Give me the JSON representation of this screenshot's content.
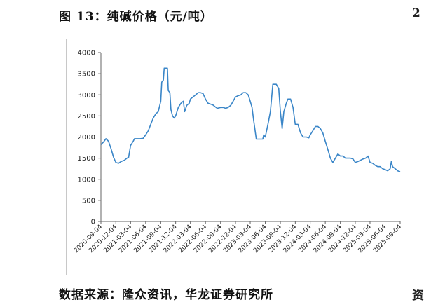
{
  "figure": {
    "title": "图 13：纯碱价格（元/吨）",
    "source": "数据来源：隆众资讯，华龙证券研究所",
    "edge_top_text": "2",
    "edge_bottom_text": "资"
  },
  "chart_data": {
    "type": "line",
    "title": "",
    "xlabel": "",
    "ylabel": "",
    "ylim": [
      0,
      4000
    ],
    "yticks": [
      "0",
      "500",
      "1000",
      "1500",
      "2000",
      "2500",
      "3000",
      "3500",
      "4000"
    ],
    "xticks": [
      "2020-09-04",
      "2020-12-04",
      "2021-03-04",
      "2021-06-04",
      "2021-09-04",
      "2021-12-04",
      "2022-03-04",
      "2022-06-04",
      "2022-09-04",
      "2022-12-04",
      "2023-03-04",
      "2023-06-04",
      "2023-09-04",
      "2023-12-04",
      "2024-03-04",
      "2024-06-04",
      "2024-09-04",
      "2024-12-04",
      "2025-03-04",
      "2025-06-04",
      "2025-09-04"
    ],
    "grid": false,
    "legend": "none",
    "series": [
      {
        "color": "#3a86c8",
        "points": [
          [
            "2020-09-04",
            1820
          ],
          [
            "2020-09-20",
            1880
          ],
          [
            "2020-10-05",
            1960
          ],
          [
            "2020-10-20",
            1900
          ],
          [
            "2020-11-05",
            1720
          ],
          [
            "2020-11-20",
            1520
          ],
          [
            "2020-12-04",
            1400
          ],
          [
            "2020-12-20",
            1380
          ],
          [
            "2021-01-05",
            1420
          ],
          [
            "2021-01-25",
            1450
          ],
          [
            "2021-02-10",
            1500
          ],
          [
            "2021-02-20",
            1520
          ],
          [
            "2021-03-04",
            1800
          ],
          [
            "2021-03-20",
            1900
          ],
          [
            "2021-03-28",
            1960
          ],
          [
            "2021-04-15",
            1960
          ],
          [
            "2021-05-01",
            1960
          ],
          [
            "2021-05-20",
            1970
          ],
          [
            "2021-06-04",
            2050
          ],
          [
            "2021-06-20",
            2150
          ],
          [
            "2021-07-05",
            2300
          ],
          [
            "2021-07-20",
            2450
          ],
          [
            "2021-08-05",
            2550
          ],
          [
            "2021-08-20",
            2600
          ],
          [
            "2021-09-04",
            2850
          ],
          [
            "2021-09-10",
            3300
          ],
          [
            "2021-09-20",
            3350
          ],
          [
            "2021-09-25",
            3630
          ],
          [
            "2021-10-15",
            3630
          ],
          [
            "2021-10-20",
            3100
          ],
          [
            "2021-10-30",
            3050
          ],
          [
            "2021-11-05",
            2650
          ],
          [
            "2021-11-15",
            2500
          ],
          [
            "2021-11-25",
            2450
          ],
          [
            "2021-12-04",
            2500
          ],
          [
            "2021-12-20",
            2700
          ],
          [
            "2022-01-05",
            2800
          ],
          [
            "2022-01-20",
            2850
          ],
          [
            "2022-01-28",
            2600
          ],
          [
            "2022-02-10",
            2750
          ],
          [
            "2022-02-25",
            2800
          ],
          [
            "2022-03-04",
            2900
          ],
          [
            "2022-03-20",
            2950
          ],
          [
            "2022-04-05",
            3000
          ],
          [
            "2022-04-20",
            3050
          ],
          [
            "2022-05-05",
            3050
          ],
          [
            "2022-05-20",
            3030
          ],
          [
            "2022-06-04",
            2900
          ],
          [
            "2022-06-20",
            2800
          ],
          [
            "2022-07-05",
            2780
          ],
          [
            "2022-07-20",
            2760
          ],
          [
            "2022-08-01",
            2720
          ],
          [
            "2022-08-15",
            2680
          ],
          [
            "2022-09-04",
            2700
          ],
          [
            "2022-09-20",
            2700
          ],
          [
            "2022-10-05",
            2680
          ],
          [
            "2022-10-20",
            2700
          ],
          [
            "2022-11-05",
            2750
          ],
          [
            "2022-11-20",
            2850
          ],
          [
            "2022-12-04",
            2950
          ],
          [
            "2022-12-20",
            2980
          ],
          [
            "2023-01-05",
            3000
          ],
          [
            "2023-01-20",
            3050
          ],
          [
            "2023-02-05",
            3050
          ],
          [
            "2023-02-20",
            3000
          ],
          [
            "2023-03-04",
            2850
          ],
          [
            "2023-03-15",
            2700
          ],
          [
            "2023-03-25",
            2400
          ],
          [
            "2023-04-10",
            1950
          ],
          [
            "2023-05-01",
            1950
          ],
          [
            "2023-05-20",
            1950
          ],
          [
            "2023-05-25",
            2050
          ],
          [
            "2023-06-04",
            2000
          ],
          [
            "2023-06-20",
            2300
          ],
          [
            "2023-07-05",
            2600
          ],
          [
            "2023-07-20",
            3250
          ],
          [
            "2023-08-10",
            3250
          ],
          [
            "2023-08-25",
            3150
          ],
          [
            "2023-09-04",
            2600
          ],
          [
            "2023-09-15",
            2200
          ],
          [
            "2023-09-25",
            2600
          ],
          [
            "2023-10-10",
            2800
          ],
          [
            "2023-10-20",
            2900
          ],
          [
            "2023-11-05",
            2900
          ],
          [
            "2023-11-20",
            2700
          ],
          [
            "2023-12-04",
            2300
          ],
          [
            "2023-12-20",
            2300
          ],
          [
            "2024-01-05",
            2100
          ],
          [
            "2024-01-20",
            2000
          ],
          [
            "2024-02-10",
            2000
          ],
          [
            "2024-02-25",
            1980
          ],
          [
            "2024-03-04",
            2050
          ],
          [
            "2024-03-20",
            2150
          ],
          [
            "2024-04-05",
            2250
          ],
          [
            "2024-04-20",
            2250
          ],
          [
            "2024-05-05",
            2200
          ],
          [
            "2024-05-20",
            2100
          ],
          [
            "2024-06-04",
            1900
          ],
          [
            "2024-06-20",
            1700
          ],
          [
            "2024-07-05",
            1500
          ],
          [
            "2024-07-20",
            1400
          ],
          [
            "2024-08-05",
            1500
          ],
          [
            "2024-08-20",
            1600
          ],
          [
            "2024-09-04",
            1550
          ],
          [
            "2024-09-20",
            1550
          ],
          [
            "2024-10-05",
            1500
          ],
          [
            "2024-10-20",
            1500
          ],
          [
            "2024-11-05",
            1500
          ],
          [
            "2024-11-20",
            1480
          ],
          [
            "2024-12-04",
            1400
          ],
          [
            "2024-12-20",
            1420
          ],
          [
            "2025-01-05",
            1450
          ],
          [
            "2025-01-20",
            1480
          ],
          [
            "2025-02-05",
            1500
          ],
          [
            "2025-02-20",
            1550
          ],
          [
            "2025-03-04",
            1400
          ],
          [
            "2025-03-20",
            1380
          ],
          [
            "2025-04-05",
            1330
          ],
          [
            "2025-04-20",
            1300
          ],
          [
            "2025-05-05",
            1300
          ],
          [
            "2025-05-20",
            1250
          ],
          [
            "2025-06-04",
            1230
          ],
          [
            "2025-06-20",
            1200
          ],
          [
            "2025-07-05",
            1250
          ],
          [
            "2025-07-12",
            1420
          ],
          [
            "2025-07-20",
            1300
          ],
          [
            "2025-08-05",
            1250
          ],
          [
            "2025-08-20",
            1200
          ],
          [
            "2025-09-04",
            1180
          ]
        ]
      }
    ]
  }
}
